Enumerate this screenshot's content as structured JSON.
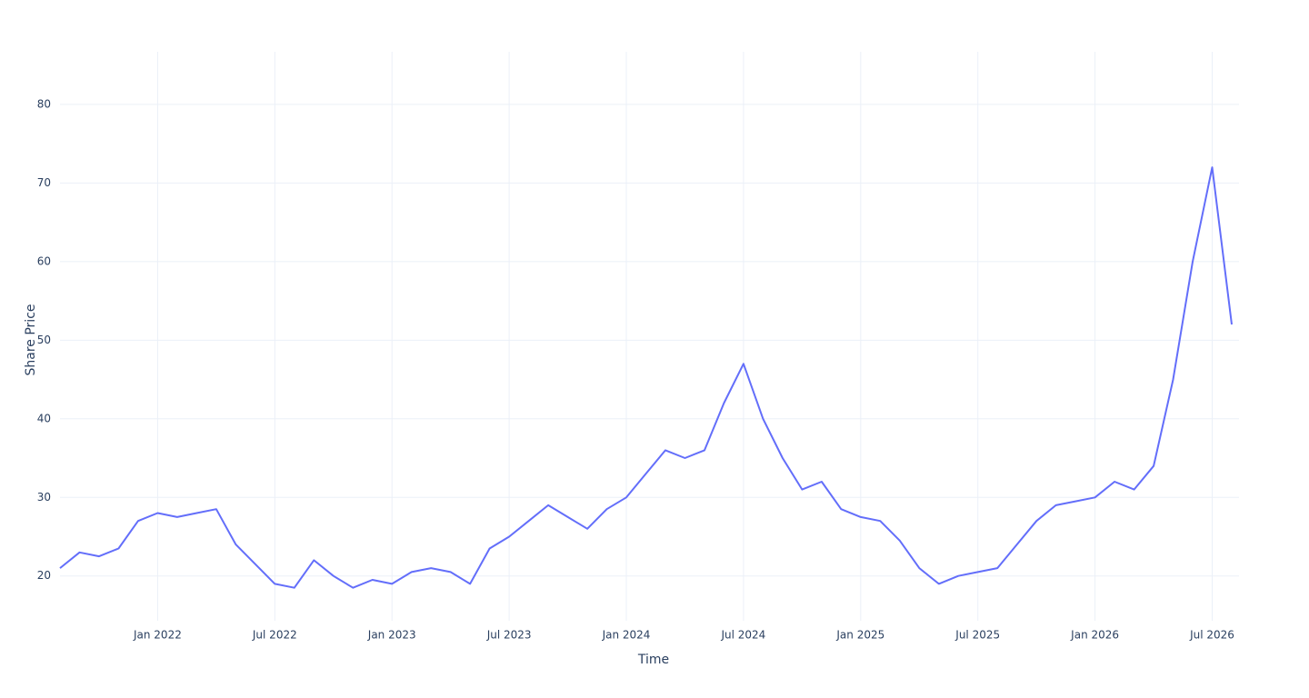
{
  "chart_data": {
    "type": "line",
    "x_label": "Time",
    "y_label": "Share Price",
    "x": [
      "2021-08",
      "2021-09",
      "2021-10",
      "2021-11",
      "2021-12",
      "2022-01",
      "2022-02",
      "2022-03",
      "2022-04",
      "2022-05",
      "2022-06",
      "2022-07",
      "2022-08",
      "2022-09",
      "2022-10",
      "2022-11",
      "2022-12",
      "2023-01",
      "2023-02",
      "2023-03",
      "2023-04",
      "2023-05",
      "2023-06",
      "2023-07",
      "2023-08",
      "2023-09",
      "2023-10",
      "2023-11",
      "2023-12",
      "2024-01",
      "2024-02",
      "2024-03",
      "2024-04",
      "2024-05",
      "2024-06",
      "2024-07",
      "2024-08",
      "2024-09",
      "2024-10",
      "2024-11",
      "2024-12",
      "2025-01",
      "2025-02",
      "2025-03",
      "2025-04",
      "2025-05",
      "2025-06",
      "2025-07",
      "2025-08",
      "2025-09",
      "2025-10",
      "2025-11",
      "2025-12",
      "2026-01",
      "2026-02",
      "2026-03",
      "2026-04",
      "2026-05",
      "2026-06",
      "2026-07",
      "2026-08"
    ],
    "series": [
      {
        "name": "Share Price",
        "color": "#636efa",
        "values": [
          21,
          23,
          22.5,
          23.5,
          27,
          28,
          27.5,
          28,
          28.5,
          24,
          21.5,
          19,
          18.5,
          22,
          20,
          18.5,
          19.5,
          19,
          20.5,
          21,
          20.5,
          19,
          23.5,
          25,
          27,
          29,
          27.5,
          26,
          28.5,
          30,
          33,
          36,
          35,
          36,
          42,
          47,
          40,
          35,
          31,
          32,
          28.5,
          27.5,
          27,
          24.5,
          21,
          19,
          20,
          20.5,
          21,
          24,
          27,
          29,
          29.5,
          30,
          32,
          31,
          34,
          45,
          60,
          72,
          52
        ]
      }
    ],
    "xlim": [
      "2021-08",
      "2026-08"
    ],
    "xticks": [
      {
        "value": "2022-01",
        "label": "Jan 2022"
      },
      {
        "value": "2022-07",
        "label": "Jul 2022"
      },
      {
        "value": "2023-01",
        "label": "Jan 2023"
      },
      {
        "value": "2023-07",
        "label": "Jul 2023"
      },
      {
        "value": "2024-01",
        "label": "Jan 2024"
      },
      {
        "value": "2024-07",
        "label": "Jul 2024"
      },
      {
        "value": "2025-01",
        "label": "Jan 2025"
      },
      {
        "value": "2025-07",
        "label": "Jul 2025"
      },
      {
        "value": "2026-01",
        "label": "Jan 2026"
      },
      {
        "value": "2026-07",
        "label": "Jul 2026"
      }
    ],
    "ylim": [
      14.3,
      86.7
    ],
    "yticks": [
      20,
      30,
      40,
      50,
      60,
      70,
      80
    ],
    "grid": true
  }
}
